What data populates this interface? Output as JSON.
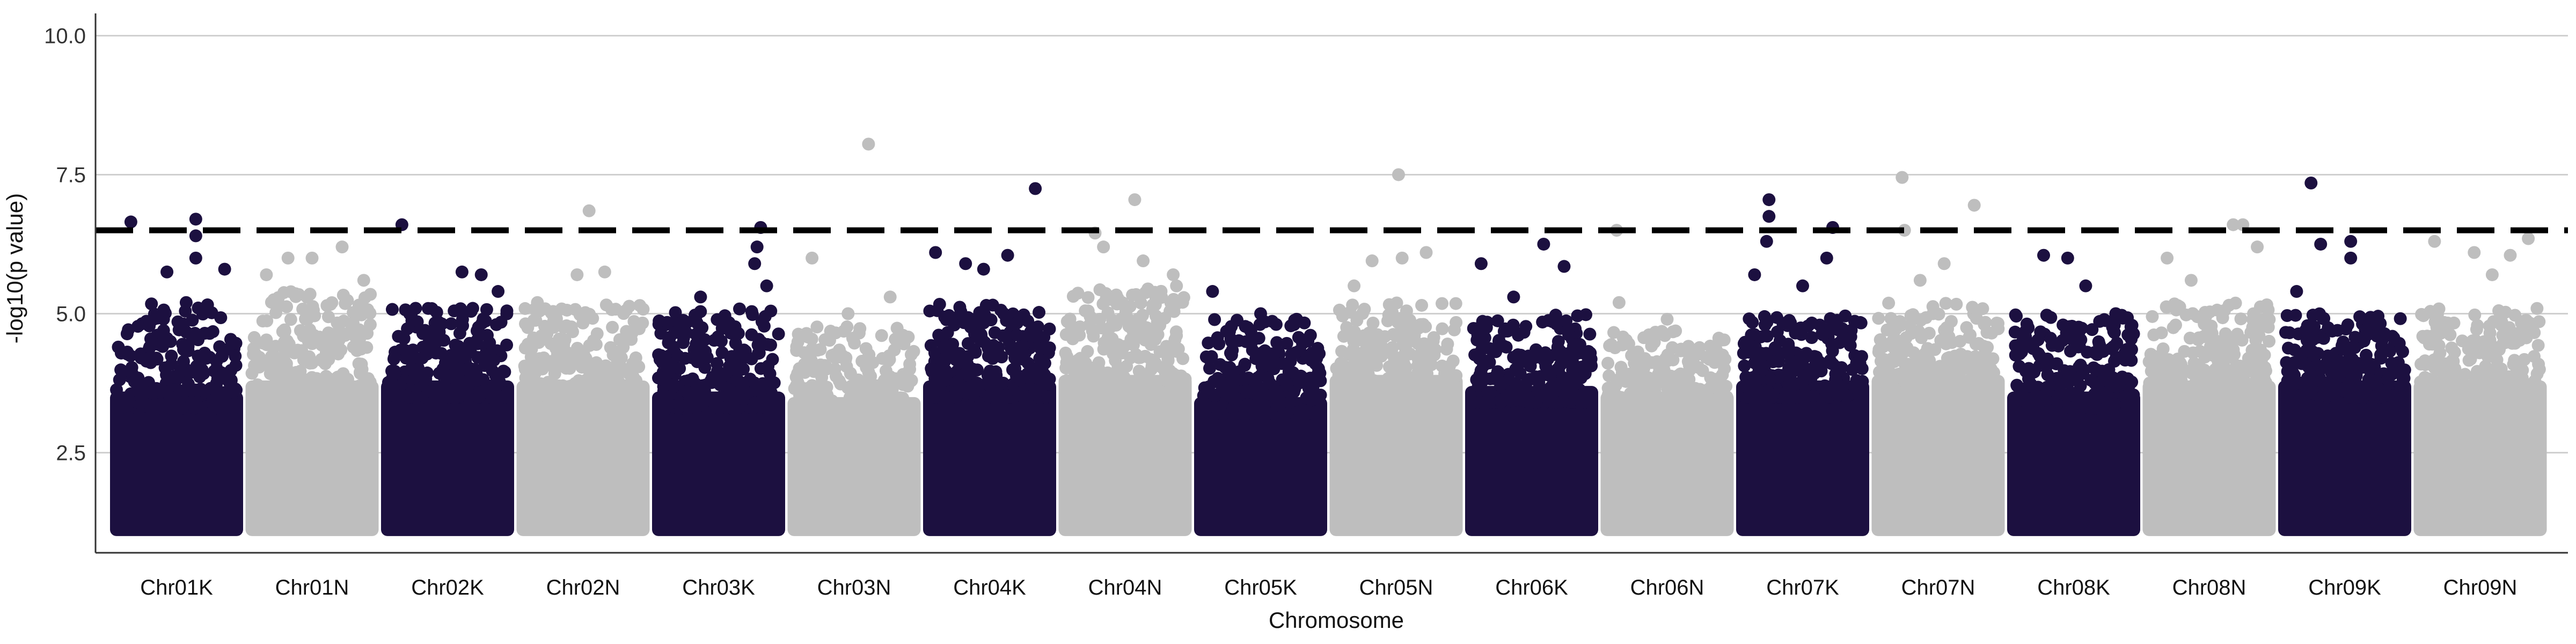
{
  "chart_data": {
    "type": "scatter",
    "title": "",
    "xlabel": "Chromosome",
    "ylabel": "-log10(p value)",
    "ylim": [
      0.7,
      10.4
    ],
    "y_ticks": [
      {
        "value": 2.5,
        "label": "2.5"
      },
      {
        "value": 5.0,
        "label": "5.0"
      },
      {
        "value": 7.5,
        "label": "7.5"
      },
      {
        "value": 10.0,
        "label": "10.0"
      }
    ],
    "grid": {
      "horizontal": true,
      "vertical": false
    },
    "significance_threshold": 6.5,
    "colors": {
      "K": "#1c1040",
      "N": "#bebebe",
      "threshold": "#000000",
      "grid": "#d0d0d0",
      "axis": "#333333"
    },
    "chromosomes": [
      {
        "name": "Chr01K",
        "color": "K",
        "dense_top": 3.6,
        "spread_top": 5.0,
        "outliers": [
          [
            0.12,
            6.65
          ],
          [
            0.66,
            6.7
          ],
          [
            0.66,
            6.4
          ],
          [
            0.66,
            6.0
          ],
          [
            0.42,
            5.75
          ],
          [
            0.9,
            5.8
          ],
          [
            0.58,
            5.2
          ]
        ]
      },
      {
        "name": "Chr01N",
        "color": "N",
        "dense_top": 3.8,
        "spread_top": 5.2,
        "outliers": [
          [
            0.12,
            5.7
          ],
          [
            0.3,
            6.0
          ],
          [
            0.5,
            6.0
          ],
          [
            0.75,
            6.2
          ],
          [
            0.93,
            5.6
          ]
        ]
      },
      {
        "name": "Chr02K",
        "color": "K",
        "dense_top": 3.8,
        "spread_top": 4.9,
        "outliers": [
          [
            0.12,
            6.6
          ],
          [
            0.62,
            5.75
          ],
          [
            0.78,
            5.7
          ],
          [
            0.92,
            5.4
          ]
        ]
      },
      {
        "name": "Chr02N",
        "color": "N",
        "dense_top": 3.8,
        "spread_top": 5.0,
        "outliers": [
          [
            0.55,
            6.85
          ],
          [
            0.12,
            5.2
          ],
          [
            0.68,
            5.75
          ],
          [
            0.45,
            5.7
          ]
        ]
      },
      {
        "name": "Chr03K",
        "color": "K",
        "dense_top": 3.6,
        "spread_top": 4.9,
        "outliers": [
          [
            0.85,
            6.55
          ],
          [
            0.82,
            6.2
          ],
          [
            0.8,
            5.9
          ],
          [
            0.35,
            5.3
          ],
          [
            0.9,
            5.5
          ]
        ]
      },
      {
        "name": "Chr03N",
        "color": "N",
        "dense_top": 3.5,
        "spread_top": 4.6,
        "outliers": [
          [
            0.62,
            8.05
          ],
          [
            0.15,
            6.0
          ],
          [
            0.45,
            5.0
          ],
          [
            0.8,
            5.3
          ]
        ]
      },
      {
        "name": "Chr04K",
        "color": "K",
        "dense_top": 3.8,
        "spread_top": 5.0,
        "outliers": [
          [
            0.88,
            7.25
          ],
          [
            0.05,
            6.1
          ],
          [
            0.3,
            5.9
          ],
          [
            0.65,
            6.05
          ],
          [
            0.45,
            5.8
          ]
        ]
      },
      {
        "name": "Chr04N",
        "color": "N",
        "dense_top": 3.9,
        "spread_top": 5.3,
        "outliers": [
          [
            0.58,
            7.05
          ],
          [
            0.25,
            6.45
          ],
          [
            0.32,
            6.2
          ],
          [
            0.65,
            5.95
          ],
          [
            0.9,
            5.7
          ]
        ]
      },
      {
        "name": "Chr05K",
        "color": "K",
        "dense_top": 3.5,
        "spread_top": 4.7,
        "outliers": [
          [
            0.1,
            5.4
          ],
          [
            0.5,
            5.0
          ],
          [
            0.8,
            4.9
          ]
        ]
      },
      {
        "name": "Chr05N",
        "color": "N",
        "dense_top": 3.9,
        "spread_top": 5.0,
        "outliers": [
          [
            0.52,
            7.5
          ],
          [
            0.3,
            5.95
          ],
          [
            0.55,
            6.0
          ],
          [
            0.75,
            6.1
          ],
          [
            0.15,
            5.5
          ]
        ]
      },
      {
        "name": "Chr06K",
        "color": "K",
        "dense_top": 3.7,
        "spread_top": 4.8,
        "outliers": [
          [
            0.08,
            5.9
          ],
          [
            0.6,
            6.25
          ],
          [
            0.77,
            5.85
          ],
          [
            0.35,
            5.3
          ]
        ]
      },
      {
        "name": "Chr06N",
        "color": "N",
        "dense_top": 3.6,
        "spread_top": 4.5,
        "outliers": [
          [
            0.08,
            6.5
          ],
          [
            0.1,
            5.2
          ],
          [
            0.5,
            4.9
          ]
        ]
      },
      {
        "name": "Chr07K",
        "color": "K",
        "dense_top": 3.8,
        "spread_top": 4.8,
        "outliers": [
          [
            0.22,
            7.05
          ],
          [
            0.22,
            6.75
          ],
          [
            0.2,
            6.3
          ],
          [
            0.1,
            5.7
          ],
          [
            0.75,
            6.55
          ],
          [
            0.7,
            6.0
          ],
          [
            0.5,
            5.5
          ]
        ]
      },
      {
        "name": "Chr07N",
        "color": "N",
        "dense_top": 3.9,
        "spread_top": 5.0,
        "outliers": [
          [
            0.2,
            7.45
          ],
          [
            0.8,
            6.95
          ],
          [
            0.22,
            6.5
          ],
          [
            0.55,
            5.9
          ],
          [
            0.35,
            5.6
          ]
        ]
      },
      {
        "name": "Chr08K",
        "color": "K",
        "dense_top": 3.6,
        "spread_top": 4.8,
        "outliers": [
          [
            0.25,
            6.05
          ],
          [
            0.45,
            6.0
          ],
          [
            0.6,
            5.5
          ],
          [
            0.85,
            5.0
          ]
        ]
      },
      {
        "name": "Chr08N",
        "color": "N",
        "dense_top": 3.8,
        "spread_top": 5.0,
        "outliers": [
          [
            0.7,
            6.6
          ],
          [
            0.78,
            6.6
          ],
          [
            0.15,
            6.0
          ],
          [
            0.35,
            5.6
          ],
          [
            0.9,
            6.2
          ]
        ]
      },
      {
        "name": "Chr09K",
        "color": "K",
        "dense_top": 3.8,
        "spread_top": 4.8,
        "outliers": [
          [
            0.22,
            7.35
          ],
          [
            0.55,
            6.3
          ],
          [
            0.55,
            6.0
          ],
          [
            0.3,
            6.25
          ],
          [
            0.1,
            5.4
          ]
        ]
      },
      {
        "name": "Chr09N",
        "color": "N",
        "dense_top": 3.8,
        "spread_top": 4.9,
        "outliers": [
          [
            0.12,
            6.3
          ],
          [
            0.45,
            6.1
          ],
          [
            0.75,
            6.05
          ],
          [
            0.9,
            6.35
          ],
          [
            0.6,
            5.7
          ]
        ]
      }
    ]
  }
}
